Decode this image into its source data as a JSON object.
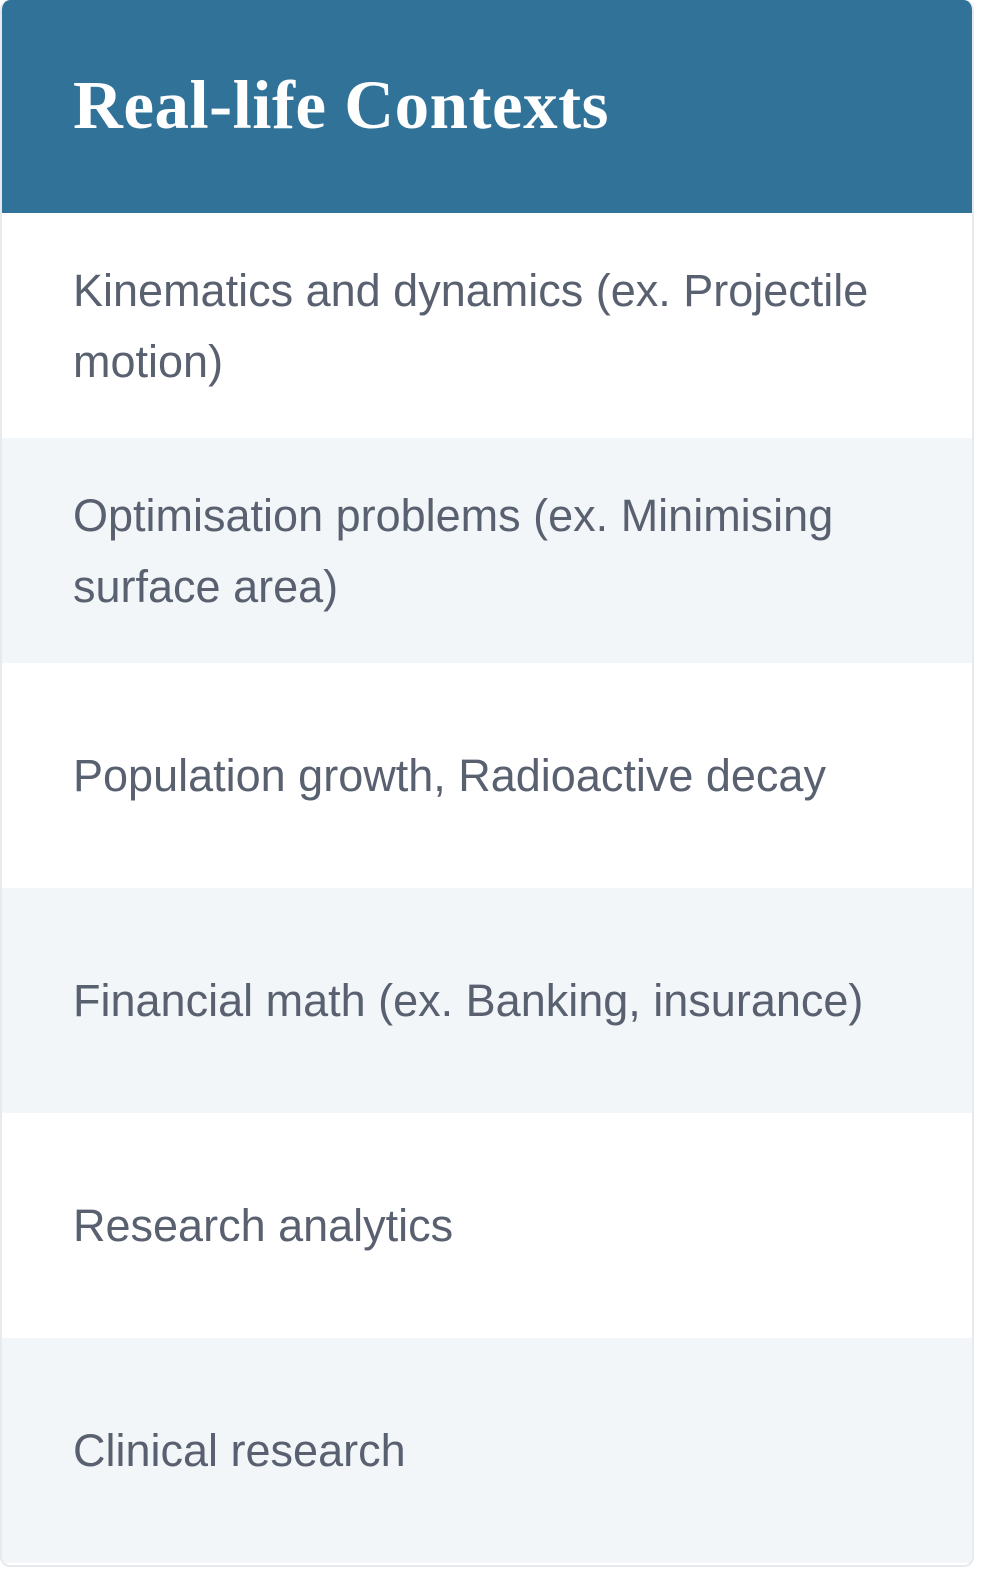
{
  "table": {
    "title": "Real-life Contexts",
    "rows": [
      "Kinematics and dynamics (ex. Projectile motion)",
      "Optimisation problems (ex. Minimising surface area)",
      "Population growth, Radioactive decay",
      "Financial math (ex. Banking, insurance)",
      "Research analytics",
      "Clinical research"
    ]
  },
  "colors": {
    "header_background": "#317299",
    "header_text": "#ffffff",
    "row_text": "#596170",
    "alt_row_background": "#f3f6f9"
  }
}
